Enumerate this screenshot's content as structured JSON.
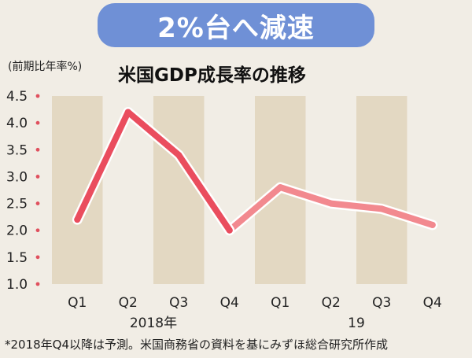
{
  "header": {
    "title": "2%台へ減速"
  },
  "chart_data": {
    "type": "line",
    "title": "米国GDP成長率の推移",
    "ylabel": "(前期比年率%)",
    "ylim": [
      1.0,
      4.5
    ],
    "yticks": [
      1.0,
      1.5,
      2.0,
      2.5,
      3.0,
      3.5,
      4.0,
      4.5
    ],
    "categories": [
      "Q1",
      "Q2",
      "Q3",
      "Q4",
      "Q1",
      "Q2",
      "Q3",
      "Q4"
    ],
    "year_labels": [
      {
        "label": "2018年",
        "index": 1.5
      },
      {
        "label": "19",
        "index": 5.5
      }
    ],
    "series": [
      {
        "values": [
          2.2,
          4.2,
          3.4,
          2.0,
          2.8,
          2.5,
          2.4,
          2.1
        ]
      }
    ],
    "actual_until_index": 3,
    "colors": {
      "actual": "#ea4d5e",
      "forecast": "#f2898f",
      "band": "#e3d8c2",
      "tick_dot": "#e0505e"
    },
    "grid": false
  },
  "footnote": "*2018年Q4以降は予測。米国商務省の資料を基にみずほ総合研究所作成"
}
